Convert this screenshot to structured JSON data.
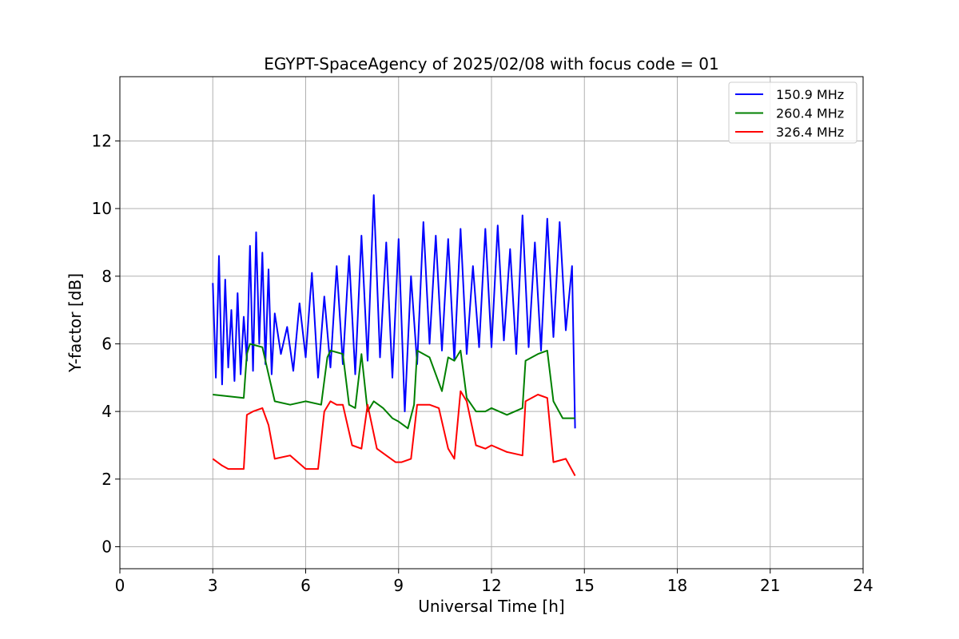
{
  "chart_data": {
    "type": "line",
    "title": "EGYPT-SpaceAgency of 2025/02/08 with focus code = 01",
    "xlabel": "Universal Time [h]",
    "ylabel": "Y-factor [dB]",
    "xlim": [
      0,
      24
    ],
    "ylim": [
      -0.65,
      13.9
    ],
    "xticks": [
      0,
      3,
      6,
      9,
      12,
      15,
      18,
      21,
      24
    ],
    "yticks": [
      0,
      2,
      4,
      6,
      8,
      10,
      12
    ],
    "grid": true,
    "legend_position": "top-right",
    "series": [
      {
        "name": "150.9 MHz",
        "color": "#0000ff",
        "x": [
          3.0,
          3.1,
          3.2,
          3.3,
          3.4,
          3.5,
          3.6,
          3.7,
          3.8,
          3.9,
          4.0,
          4.1,
          4.2,
          4.3,
          4.4,
          4.5,
          4.6,
          4.7,
          4.8,
          4.9,
          5.0,
          5.2,
          5.4,
          5.6,
          5.8,
          6.0,
          6.2,
          6.4,
          6.6,
          6.8,
          7.0,
          7.2,
          7.4,
          7.6,
          7.8,
          8.0,
          8.2,
          8.4,
          8.6,
          8.8,
          9.0,
          9.2,
          9.4,
          9.6,
          9.8,
          10.0,
          10.2,
          10.4,
          10.6,
          10.8,
          11.0,
          11.2,
          11.4,
          11.6,
          11.8,
          12.0,
          12.2,
          12.4,
          12.6,
          12.8,
          13.0,
          13.2,
          13.4,
          13.6,
          13.8,
          14.0,
          14.2,
          14.4,
          14.6,
          14.7
        ],
        "values": [
          7.8,
          5.0,
          8.6,
          4.8,
          7.9,
          5.3,
          7.0,
          4.9,
          7.5,
          5.1,
          6.8,
          5.5,
          8.9,
          5.2,
          9.3,
          6.0,
          8.7,
          5.4,
          8.2,
          5.1,
          6.9,
          5.7,
          6.5,
          5.2,
          7.2,
          5.6,
          8.1,
          5.0,
          7.4,
          5.3,
          8.3,
          5.4,
          8.6,
          5.1,
          9.2,
          5.5,
          10.4,
          5.6,
          9.0,
          5.0,
          9.1,
          4.0,
          8.0,
          5.4,
          9.6,
          6.0,
          9.2,
          5.8,
          9.1,
          5.5,
          9.4,
          5.7,
          8.3,
          5.9,
          9.4,
          5.9,
          9.5,
          6.1,
          8.8,
          5.7,
          9.8,
          5.9,
          9.0,
          5.8,
          9.7,
          6.2,
          9.6,
          6.4,
          8.3,
          3.5
        ]
      },
      {
        "name": "260.4 MHz",
        "color": "#008000",
        "x": [
          3.0,
          3.5,
          4.0,
          4.1,
          4.2,
          4.6,
          4.8,
          5.0,
          5.5,
          6.0,
          6.5,
          6.7,
          6.8,
          7.2,
          7.4,
          7.6,
          7.8,
          8.0,
          8.2,
          8.5,
          8.8,
          9.0,
          9.3,
          9.5,
          9.6,
          10.0,
          10.4,
          10.6,
          10.8,
          11.0,
          11.2,
          11.5,
          11.8,
          12.0,
          12.5,
          13.0,
          13.1,
          13.5,
          13.8,
          14.0,
          14.3,
          14.7
        ],
        "values": [
          4.5,
          4.45,
          4.4,
          5.7,
          6.0,
          5.9,
          5.1,
          4.3,
          4.2,
          4.3,
          4.2,
          5.6,
          5.8,
          5.7,
          4.2,
          4.1,
          5.7,
          4.0,
          4.3,
          4.1,
          3.8,
          3.7,
          3.5,
          4.2,
          5.8,
          5.6,
          4.6,
          5.6,
          5.5,
          5.8,
          4.4,
          4.0,
          4.0,
          4.1,
          3.9,
          4.1,
          5.5,
          5.7,
          5.8,
          4.3,
          3.8,
          3.8
        ]
      },
      {
        "name": "326.4 MHz",
        "color": "#ff0000",
        "x": [
          3.0,
          3.3,
          3.5,
          4.0,
          4.1,
          4.3,
          4.6,
          4.8,
          5.0,
          5.5,
          6.0,
          6.4,
          6.6,
          6.8,
          7.0,
          7.2,
          7.5,
          7.8,
          8.0,
          8.3,
          8.6,
          8.9,
          9.1,
          9.4,
          9.6,
          10.0,
          10.3,
          10.6,
          10.8,
          11.0,
          11.2,
          11.5,
          11.8,
          12.0,
          12.5,
          13.0,
          13.1,
          13.5,
          13.8,
          14.0,
          14.4,
          14.7
        ],
        "values": [
          2.6,
          2.4,
          2.3,
          2.3,
          3.9,
          4.0,
          4.1,
          3.6,
          2.6,
          2.7,
          2.3,
          2.3,
          4.0,
          4.3,
          4.2,
          4.2,
          3.0,
          2.9,
          4.2,
          2.9,
          2.7,
          2.5,
          2.5,
          2.6,
          4.2,
          4.2,
          4.1,
          2.9,
          2.6,
          4.6,
          4.3,
          3.0,
          2.9,
          3.0,
          2.8,
          2.7,
          4.3,
          4.5,
          4.4,
          2.5,
          2.6,
          2.1
        ]
      }
    ]
  }
}
